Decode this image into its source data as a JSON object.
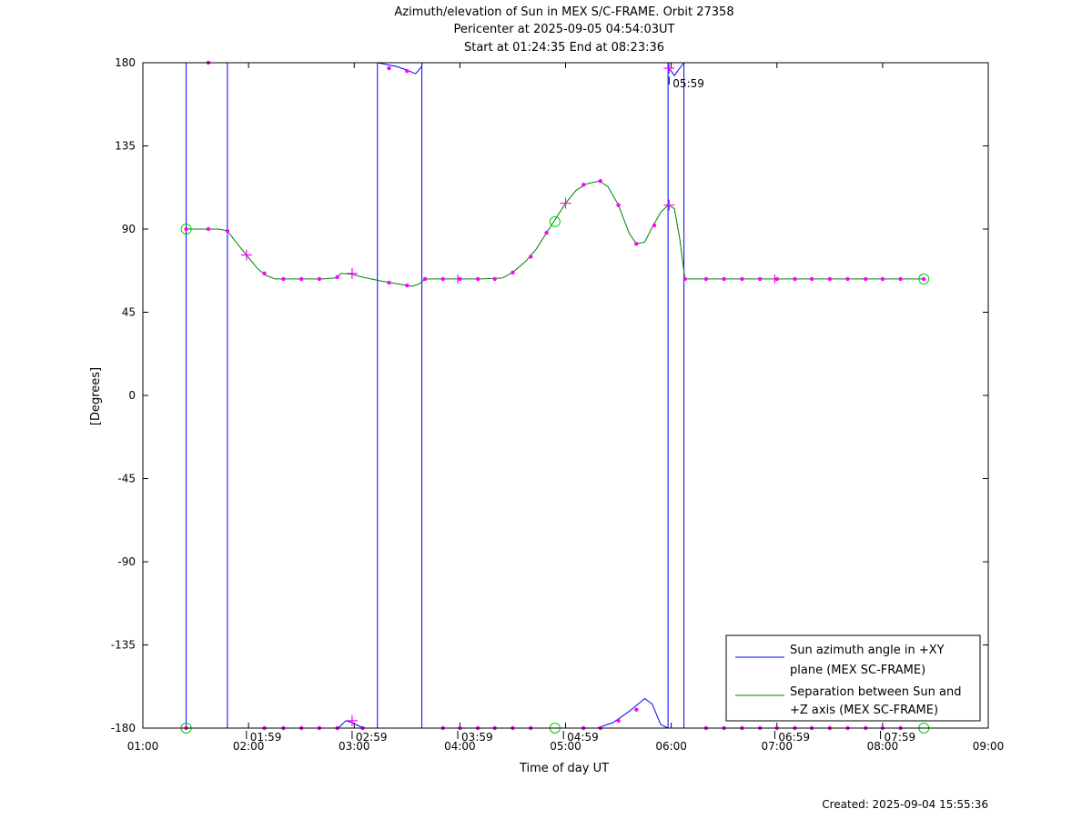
{
  "chart_data": {
    "type": "line",
    "title": "Azimuth/elevation of Sun in MEX S/C-FRAME.  Orbit 27358",
    "subtitle": "Pericenter at 2025-09-05 04:54:03UT",
    "subtitle2": "Start at 01:24:35 End at 08:23:36",
    "xlabel": "Time of day UT",
    "ylabel": "[Degrees]",
    "xlim_hours": [
      1,
      9
    ],
    "ylim": [
      -180,
      180
    ],
    "xtick_labels": [
      "01:00",
      "02:00",
      "03:00",
      "04:00",
      "05:00",
      "06:00",
      "07:00",
      "08:00",
      "09:00"
    ],
    "ytick_values": [
      180,
      135,
      90,
      45,
      0,
      -45,
      -90,
      -135,
      -180
    ],
    "ytick_labels": [
      "180",
      "135",
      "90",
      "45",
      "0",
      "-45",
      "-90",
      "-135",
      "-180"
    ],
    "colors": {
      "azimuth": "#0000ff",
      "separation": "#008000",
      "markers": "#ff00ff",
      "endpoints": "#00cc00"
    },
    "legend_position": "bottom-right",
    "series": [
      {
        "name": "Sun azimuth angle in +XY plane (MEX SC-FRAME)",
        "legend_lines": [
          "Sun azimuth angle in +XY",
          "plane (MEX SC-FRAME)"
        ],
        "color": "#0000ff",
        "segments": [
          [
            [
              1.41,
              -180
            ],
            [
              1.41,
              180
            ]
          ],
          [
            [
              1.41,
              180
            ],
            [
              1.8,
              180
            ]
          ],
          [
            [
              1.8,
              180
            ],
            [
              1.8,
              -180
            ]
          ],
          [
            [
              1.8,
              -180
            ],
            [
              2.85,
              -180
            ],
            [
              2.92,
              -176
            ],
            [
              2.98,
              -177
            ],
            [
              3.05,
              -179
            ],
            [
              3.1,
              -180
            ],
            [
              3.22,
              -180
            ]
          ],
          [
            [
              3.22,
              -180
            ],
            [
              3.22,
              180
            ]
          ],
          [
            [
              3.22,
              180
            ],
            [
              3.4,
              178
            ],
            [
              3.5,
              176
            ],
            [
              3.58,
              174
            ],
            [
              3.64,
              178
            ],
            [
              3.64,
              180
            ]
          ],
          [
            [
              3.64,
              180
            ],
            [
              3.64,
              -180
            ]
          ],
          [
            [
              3.64,
              -180
            ],
            [
              4.4,
              -180
            ],
            [
              4.7,
              -180
            ],
            [
              5.3,
              -180
            ],
            [
              5.45,
              -177
            ],
            [
              5.6,
              -171
            ],
            [
              5.75,
              -164
            ],
            [
              5.82,
              -167
            ],
            [
              5.9,
              -178
            ],
            [
              5.97,
              -180
            ]
          ],
          [
            [
              5.97,
              -180
            ],
            [
              5.97,
              180
            ]
          ],
          [
            [
              5.97,
              178
            ],
            [
              6.03,
              173
            ],
            [
              6.08,
              177
            ],
            [
              6.12,
              180
            ]
          ],
          [
            [
              6.12,
              180
            ],
            [
              6.12,
              -180
            ]
          ],
          [
            [
              6.12,
              -180
            ],
            [
              8.39,
              -180
            ]
          ]
        ]
      },
      {
        "name": "Separation between Sun and +Z axis (MEX SC-FRAME)",
        "legend_lines": [
          "Separation between Sun and",
          "+Z axis (MEX SC-FRAME)"
        ],
        "color": "#008000",
        "points": [
          [
            1.41,
            90
          ],
          [
            1.57,
            90
          ],
          [
            1.72,
            90
          ],
          [
            1.8,
            89
          ],
          [
            1.88,
            83
          ],
          [
            1.98,
            76
          ],
          [
            2.08,
            69
          ],
          [
            2.16,
            65
          ],
          [
            2.25,
            63
          ],
          [
            2.4,
            63
          ],
          [
            2.55,
            63
          ],
          [
            2.7,
            63
          ],
          [
            2.82,
            63.5
          ],
          [
            2.88,
            66
          ],
          [
            2.98,
            65.5
          ],
          [
            3.08,
            64
          ],
          [
            3.24,
            62
          ],
          [
            3.4,
            60.5
          ],
          [
            3.55,
            59
          ],
          [
            3.62,
            60.5
          ],
          [
            3.67,
            63
          ],
          [
            3.8,
            63
          ],
          [
            4.0,
            63
          ],
          [
            4.2,
            63
          ],
          [
            4.4,
            63.5
          ],
          [
            4.5,
            66.5
          ],
          [
            4.63,
            73
          ],
          [
            4.72,
            79
          ],
          [
            4.82,
            88
          ],
          [
            4.9,
            95
          ],
          [
            5.0,
            104
          ],
          [
            5.1,
            111
          ],
          [
            5.2,
            114.5
          ],
          [
            5.32,
            116
          ],
          [
            5.4,
            113
          ],
          [
            5.5,
            103
          ],
          [
            5.6,
            88
          ],
          [
            5.67,
            82
          ],
          [
            5.75,
            83
          ],
          [
            5.82,
            91
          ],
          [
            5.9,
            99
          ],
          [
            5.97,
            103
          ],
          [
            6.03,
            101
          ],
          [
            6.08,
            85
          ],
          [
            6.13,
            63
          ],
          [
            6.2,
            63
          ],
          [
            6.5,
            63
          ],
          [
            7.0,
            63
          ],
          [
            7.5,
            63
          ],
          [
            8.0,
            63
          ],
          [
            8.39,
            63
          ]
        ]
      }
    ],
    "markers": {
      "separation_dots": [
        [
          1.41,
          90
        ],
        [
          1.62,
          90
        ],
        [
          1.8,
          89
        ],
        [
          2.15,
          66
        ],
        [
          2.33,
          63
        ],
        [
          2.5,
          63
        ],
        [
          2.67,
          63
        ],
        [
          2.84,
          64
        ],
        [
          3.33,
          61
        ],
        [
          3.5,
          59.5
        ],
        [
          3.67,
          63
        ],
        [
          3.84,
          63
        ],
        [
          4.0,
          63
        ],
        [
          4.17,
          63
        ],
        [
          4.33,
          63
        ],
        [
          4.5,
          66.5
        ],
        [
          4.67,
          75
        ],
        [
          4.82,
          88
        ],
        [
          5.17,
          114
        ],
        [
          5.33,
          116
        ],
        [
          5.5,
          103
        ],
        [
          5.67,
          82
        ],
        [
          5.84,
          92
        ],
        [
          6.13,
          63
        ],
        [
          6.33,
          63
        ],
        [
          6.5,
          63
        ],
        [
          6.67,
          63
        ],
        [
          6.84,
          63
        ],
        [
          7.0,
          63
        ],
        [
          7.17,
          63
        ],
        [
          7.33,
          63
        ],
        [
          7.5,
          63
        ],
        [
          7.67,
          63
        ],
        [
          7.84,
          63
        ],
        [
          8.0,
          63
        ],
        [
          8.17,
          63
        ],
        [
          8.39,
          63
        ]
      ],
      "separation_crosses": [
        [
          1.98,
          76
        ],
        [
          2.98,
          66
        ],
        [
          5.0,
          104
        ],
        [
          5.98,
          103
        ]
      ],
      "azimuth_crosses": [
        [
          2.98,
          -176
        ],
        [
          5.98,
          177
        ]
      ],
      "separation_ticks": [
        [
          3.98,
          63
        ],
        [
          6.98,
          63
        ]
      ],
      "azimuth_dots": [
        [
          1.62,
          180
        ],
        [
          3.33,
          177
        ],
        [
          3.5,
          175.5
        ],
        [
          5.67,
          -170
        ],
        [
          5.5,
          -176
        ],
        [
          2.15,
          -180
        ],
        [
          2.33,
          -180
        ],
        [
          2.5,
          -180
        ],
        [
          2.67,
          -180
        ],
        [
          2.84,
          -180
        ],
        [
          3.08,
          -180
        ],
        [
          3.84,
          -180
        ],
        [
          4.0,
          -180
        ],
        [
          4.17,
          -180
        ],
        [
          4.33,
          -180
        ],
        [
          4.5,
          -180
        ],
        [
          4.67,
          -180
        ],
        [
          5.17,
          -180
        ],
        [
          5.33,
          -180
        ],
        [
          6.33,
          -180
        ],
        [
          6.5,
          -180
        ],
        [
          6.67,
          -180
        ],
        [
          6.84,
          -180
        ],
        [
          7.0,
          -180
        ],
        [
          7.17,
          -180
        ],
        [
          7.33,
          -180
        ],
        [
          7.5,
          -180
        ],
        [
          7.67,
          -180
        ],
        [
          7.84,
          -180
        ],
        [
          8.0,
          -180
        ],
        [
          8.17,
          -180
        ],
        [
          1.41,
          -180
        ]
      ],
      "circles": [
        [
          1.41,
          90
        ],
        [
          1.41,
          -180
        ],
        [
          4.9,
          94
        ],
        [
          4.9,
          -180
        ],
        [
          8.39,
          63
        ],
        [
          8.39,
          -180
        ]
      ]
    },
    "hour_annotations": [
      {
        "x": 1.98,
        "y": -180,
        "label": "01:59"
      },
      {
        "x": 2.98,
        "y": -180,
        "label": "02:59"
      },
      {
        "x": 3.98,
        "y": -180,
        "label": "03:59"
      },
      {
        "x": 4.98,
        "y": -180,
        "label": "04:59"
      },
      {
        "x": 5.98,
        "y": 175,
        "label": "05:59"
      },
      {
        "x": 6.98,
        "y": -180,
        "label": "06:59"
      },
      {
        "x": 7.98,
        "y": -180,
        "label": "07:59"
      }
    ]
  },
  "footer": {
    "created": "Created: 2025-09-04 15:55:36"
  }
}
